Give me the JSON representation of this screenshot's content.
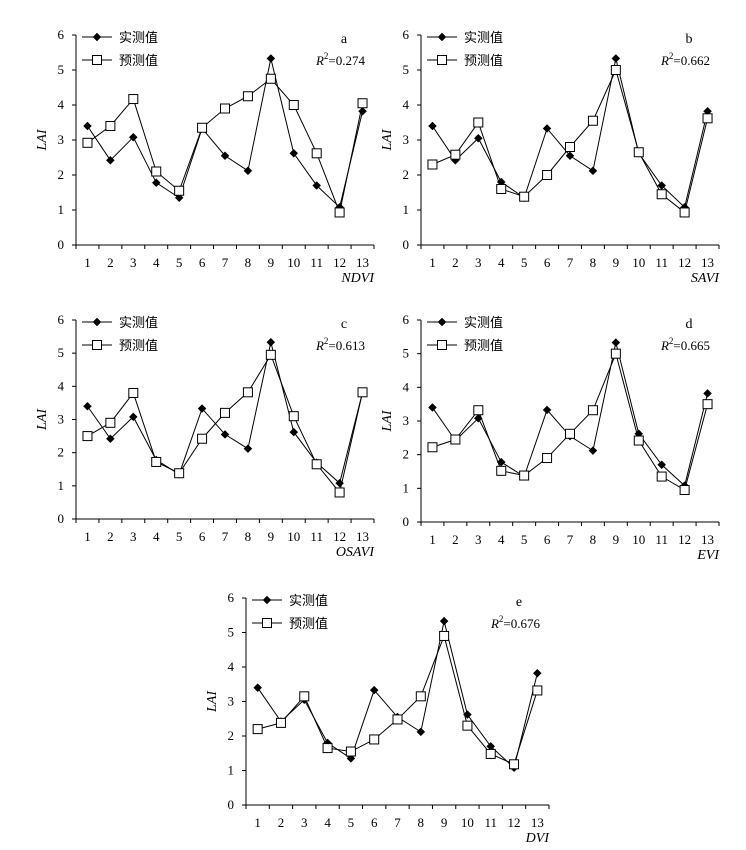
{
  "legend": {
    "measured": "实测值",
    "predicted": "预测值"
  },
  "chart_data": [
    {
      "type": "line",
      "panel": "a",
      "r2": "0.274",
      "xlabel": "NDVI",
      "ylabel": "LAI",
      "categories": [
        "1",
        "2",
        "3",
        "4",
        "5",
        "6",
        "7",
        "8",
        "9",
        "10",
        "11",
        "12",
        "13"
      ],
      "ylim": [
        0,
        6
      ],
      "yticks": [
        "0",
        "1",
        "2",
        "3",
        "4",
        "5",
        "6"
      ],
      "series": [
        {
          "name": "实测值",
          "marker": "diamond",
          "values": [
            3.4,
            2.42,
            3.08,
            1.78,
            1.35,
            3.33,
            2.55,
            2.12,
            5.33,
            2.62,
            1.7,
            1.08,
            3.82
          ]
        },
        {
          "name": "预测值",
          "marker": "square",
          "values": [
            2.92,
            3.4,
            4.17,
            2.1,
            1.55,
            3.35,
            3.9,
            4.25,
            4.75,
            4.0,
            2.62,
            0.93,
            4.05
          ]
        }
      ]
    },
    {
      "type": "line",
      "panel": "b",
      "r2": "0.662",
      "xlabel": "SAVI",
      "ylabel": "LAI",
      "categories": [
        "1",
        "2",
        "3",
        "4",
        "5",
        "6",
        "7",
        "8",
        "9",
        "10",
        "11",
        "12",
        "13"
      ],
      "ylim": [
        0,
        6
      ],
      "yticks": [
        "0",
        "1",
        "2",
        "3",
        "4",
        "5",
        "6"
      ],
      "series": [
        {
          "name": "实测值",
          "marker": "diamond",
          "values": [
            3.4,
            2.42,
            3.05,
            1.8,
            1.35,
            3.33,
            2.55,
            2.12,
            5.33,
            2.62,
            1.7,
            1.08,
            3.82
          ]
        },
        {
          "name": "预测值",
          "marker": "square",
          "values": [
            2.3,
            2.58,
            3.5,
            1.6,
            1.38,
            2.0,
            2.8,
            3.55,
            5.0,
            2.65,
            1.45,
            0.93,
            3.62
          ]
        }
      ]
    },
    {
      "type": "line",
      "panel": "c",
      "r2": "0.613",
      "xlabel": "OSAVI",
      "ylabel": "LAI",
      "categories": [
        "1",
        "2",
        "3",
        "4",
        "5",
        "6",
        "7",
        "8",
        "9",
        "10",
        "11",
        "12",
        "13"
      ],
      "ylim": [
        0,
        6
      ],
      "yticks": [
        "0",
        "1",
        "2",
        "3",
        "4",
        "5",
        "6"
      ],
      "series": [
        {
          "name": "实测值",
          "marker": "diamond",
          "values": [
            3.4,
            2.42,
            3.08,
            1.78,
            1.35,
            3.33,
            2.55,
            2.12,
            5.33,
            2.62,
            1.7,
            1.08,
            3.82
          ]
        },
        {
          "name": "预测值",
          "marker": "square",
          "values": [
            2.5,
            2.9,
            3.8,
            1.72,
            1.38,
            2.42,
            3.2,
            3.82,
            4.95,
            3.1,
            1.65,
            0.8,
            3.82
          ]
        }
      ]
    },
    {
      "type": "line",
      "panel": "d",
      "r2": "0.665",
      "xlabel": "EVI",
      "ylabel": "LAI",
      "categories": [
        "1",
        "2",
        "3",
        "4",
        "5",
        "6",
        "7",
        "8",
        "9",
        "10",
        "11",
        "12",
        "13"
      ],
      "ylim": [
        0,
        6
      ],
      "yticks": [
        "0",
        "1",
        "2",
        "3",
        "4",
        "5",
        "6"
      ],
      "series": [
        {
          "name": "实测值",
          "marker": "diamond",
          "values": [
            3.4,
            2.42,
            3.08,
            1.78,
            1.35,
            3.33,
            2.55,
            2.12,
            5.33,
            2.62,
            1.7,
            1.08,
            3.82
          ]
        },
        {
          "name": "预测值",
          "marker": "square",
          "values": [
            2.22,
            2.45,
            3.32,
            1.52,
            1.38,
            1.9,
            2.62,
            3.32,
            5.0,
            2.42,
            1.35,
            0.95,
            3.5
          ]
        }
      ]
    },
    {
      "type": "line",
      "panel": "e",
      "r2": "0.676",
      "xlabel": "DVI",
      "ylabel": "LAI",
      "categories": [
        "1",
        "2",
        "3",
        "4",
        "5",
        "6",
        "7",
        "8",
        "9",
        "10",
        "11",
        "12",
        "13"
      ],
      "ylim": [
        0,
        6
      ],
      "yticks": [
        "0",
        "1",
        "2",
        "3",
        "4",
        "5",
        "6"
      ],
      "series": [
        {
          "name": "实测值",
          "marker": "diamond",
          "values": [
            3.4,
            2.42,
            3.05,
            1.8,
            1.35,
            3.33,
            2.55,
            2.12,
            5.33,
            2.62,
            1.7,
            1.08,
            3.82
          ]
        },
        {
          "name": "预测值",
          "marker": "square",
          "values": [
            2.2,
            2.38,
            3.15,
            1.65,
            1.55,
            1.9,
            2.48,
            3.15,
            4.9,
            2.3,
            1.48,
            1.18,
            3.32
          ]
        }
      ]
    }
  ]
}
